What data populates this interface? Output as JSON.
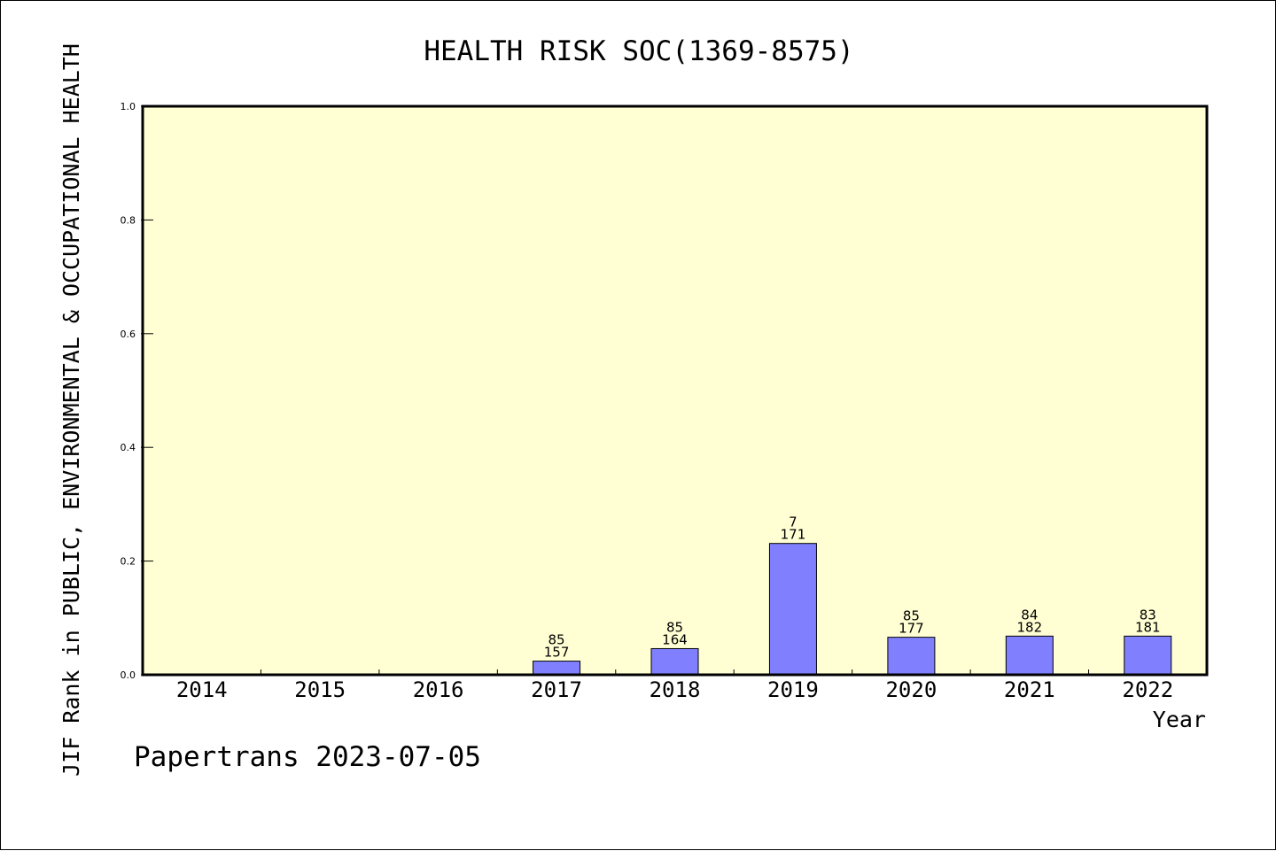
{
  "chart_data": {
    "type": "bar",
    "title": "HEALTH RISK SOC(1369-8575)",
    "ylabel": "JIF Rank in PUBLIC, ENVIRONMENTAL & OCCUPATIONAL HEALTH",
    "xlabel": "Year",
    "ylim": [
      0.0,
      1.0
    ],
    "yticks": [
      "0.0",
      "0.2",
      "0.4",
      "0.6",
      "0.8",
      "1.0"
    ],
    "categories": [
      "2014",
      "2015",
      "2016",
      "2017",
      "2018",
      "2019",
      "2020",
      "2021",
      "2022"
    ],
    "values": [
      null,
      null,
      null,
      0.024,
      0.046,
      0.231,
      0.066,
      0.068,
      0.068
    ],
    "rank_labels": [
      {
        "rank": "",
        "total": ""
      },
      {
        "rank": "",
        "total": ""
      },
      {
        "rank": "",
        "total": ""
      },
      {
        "rank": "85",
        "total": "157"
      },
      {
        "rank": "85",
        "total": "164"
      },
      {
        "rank": "7",
        "total": "171"
      },
      {
        "rank": "85",
        "total": "177"
      },
      {
        "rank": "84",
        "total": "182"
      },
      {
        "rank": "83",
        "total": "181"
      }
    ],
    "grid": false,
    "bar_color": "#8080ff",
    "plot_background": "#ffffd3"
  },
  "footer": "Papertrans 2023-07-05"
}
